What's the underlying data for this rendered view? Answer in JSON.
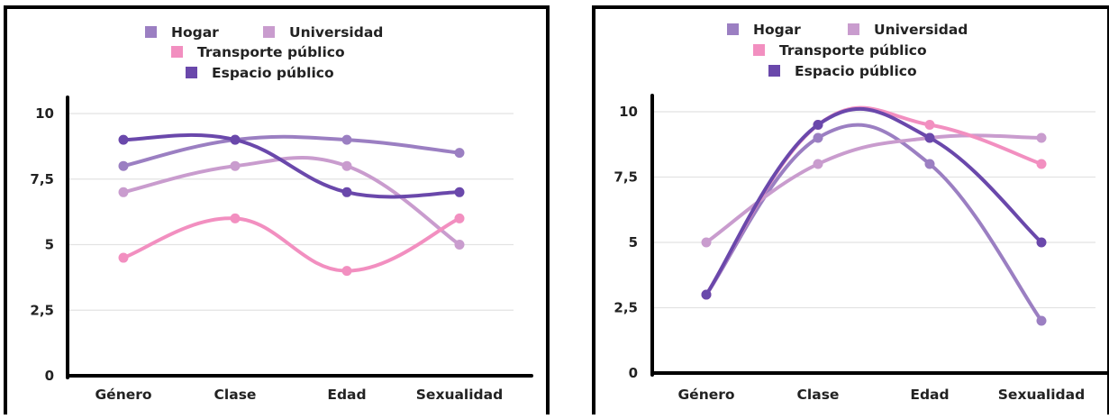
{
  "chart_data": [
    {
      "type": "line",
      "title": "",
      "xlabel": "",
      "ylabel": "",
      "categories": [
        "Género",
        "Clase",
        "Edad",
        "Sexualidad"
      ],
      "ylim": [
        0,
        10
      ],
      "y_ticks": [
        0,
        2.5,
        5,
        7.5,
        10
      ],
      "y_tick_labels": [
        "0",
        "2,5",
        "5",
        "7,5",
        "10"
      ],
      "grid": true,
      "legend_position": "top-center",
      "series": [
        {
          "name": "Hogar",
          "values": [
            8,
            9,
            9,
            8.5
          ],
          "color": "#9b7fc2"
        },
        {
          "name": "Universidad",
          "values": [
            7,
            8,
            8,
            5
          ],
          "color": "#c99cce"
        },
        {
          "name": "Transporte público",
          "values": [
            4.5,
            6,
            4,
            6
          ],
          "color": "#f28fc0"
        },
        {
          "name": "Espacio público",
          "values": [
            9,
            9,
            7,
            7
          ],
          "color": "#6a48ab"
        }
      ]
    },
    {
      "type": "line",
      "title": "",
      "xlabel": "",
      "ylabel": "",
      "categories": [
        "Género",
        "Clase",
        "Edad",
        "Sexualidad"
      ],
      "ylim": [
        0,
        10
      ],
      "y_ticks": [
        0,
        2.5,
        5,
        7.5,
        10
      ],
      "y_tick_labels": [
        "0",
        "2,5",
        "5",
        "7,5",
        "10"
      ],
      "grid": true,
      "legend_position": "top-center",
      "series": [
        {
          "name": "Hogar",
          "values": [
            3,
            9,
            8,
            2
          ],
          "color": "#9b7fc2"
        },
        {
          "name": "Universidad",
          "values": [
            5,
            8,
            9,
            9
          ],
          "color": "#c99cce"
        },
        {
          "name": "Transporte público",
          "values": [
            3,
            9.5,
            9.5,
            8
          ],
          "color": "#f28fc0"
        },
        {
          "name": "Espacio público",
          "values": [
            3,
            9.5,
            9,
            5
          ],
          "color": "#6a48ab"
        }
      ]
    }
  ]
}
